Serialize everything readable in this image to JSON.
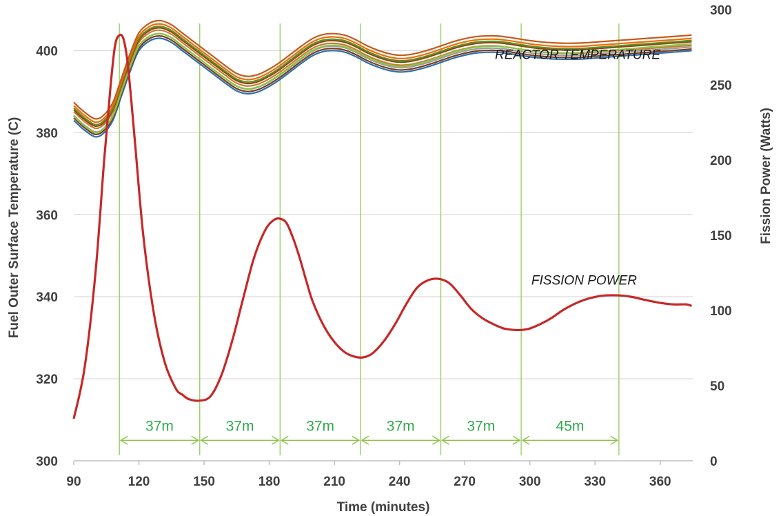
{
  "chart_data": {
    "type": "line",
    "xlabel": "Time (minutes)",
    "ylabel_left": "Fuel Outer Surface Temperature (C)",
    "ylabel_right": "Fission Power (Watts)",
    "xlim": [
      90,
      375
    ],
    "ylim_left": [
      300,
      410
    ],
    "ylim_right": [
      0,
      300
    ],
    "x_ticks": [
      90,
      120,
      150,
      180,
      210,
      240,
      270,
      300,
      330,
      360
    ],
    "y_ticks_left": [
      300,
      320,
      340,
      360,
      380,
      400
    ],
    "y_ticks_right": [
      0,
      50,
      100,
      150,
      200,
      250,
      300
    ],
    "grid": "horizontal",
    "annotations": [
      {
        "text": "REACTOR TEMPERATURE",
        "x": 322,
        "y": 398
      },
      {
        "text": "FISSION POWER",
        "x": 325,
        "y": 343
      }
    ],
    "intervals": [
      {
        "from": 111,
        "to": 148,
        "label": "37m"
      },
      {
        "from": 148,
        "to": 185,
        "label": "37m"
      },
      {
        "from": 185,
        "to": 222,
        "label": "37m"
      },
      {
        "from": 222,
        "to": 259,
        "label": "37m"
      },
      {
        "from": 259,
        "to": 296,
        "label": "37m"
      },
      {
        "from": 296,
        "to": 341,
        "label": "45m"
      }
    ],
    "interval_value_left": 305,
    "fission_power": {
      "axis": "right",
      "color": "#c62828",
      "x": [
        90,
        95,
        100,
        104,
        107,
        109,
        111,
        113,
        115,
        118,
        122,
        127,
        132,
        137,
        140,
        143,
        148,
        153,
        158,
        163,
        168,
        173,
        178,
        182,
        185,
        188,
        191,
        194,
        197,
        200,
        205,
        210,
        215,
        220,
        224,
        228,
        233,
        238,
        243,
        248,
        253,
        258,
        263,
        268,
        273,
        278,
        283,
        288,
        293,
        296,
        300,
        305,
        310,
        315,
        320,
        325,
        330,
        335,
        341,
        347,
        353,
        360,
        366,
        372,
        374.5
      ],
      "values": [
        28,
        62,
        125,
        200,
        250,
        276,
        283,
        280,
        262,
        215,
        150,
        97,
        65,
        48,
        44,
        41,
        40,
        43,
        57,
        80,
        108,
        135,
        153,
        160,
        161,
        158,
        148,
        135,
        120,
        106,
        90,
        79,
        72,
        69,
        69,
        72,
        80,
        91,
        104,
        115,
        120,
        121,
        118,
        110,
        101,
        95,
        91,
        88,
        87,
        87,
        88,
        91,
        95,
        100,
        104,
        107,
        109,
        110,
        110,
        109,
        107,
        105,
        104,
        104,
        103
      ]
    },
    "temperature_x": [
      90,
      95,
      100,
      104,
      108,
      112,
      116,
      120,
      125,
      130,
      135,
      140,
      145,
      150,
      155,
      160,
      165,
      170,
      175,
      180,
      185,
      190,
      195,
      200,
      205,
      210,
      215,
      220,
      225,
      230,
      235,
      240,
      245,
      250,
      255,
      260,
      265,
      270,
      275,
      280,
      285,
      290,
      295,
      300,
      305,
      310,
      315,
      320,
      325,
      330,
      335,
      340,
      345,
      350,
      355,
      360,
      365,
      370,
      374.5
    ],
    "temperature_base": [
      383,
      380.6,
      379,
      380,
      383,
      389,
      395,
      400,
      402.4,
      403,
      402,
      400,
      398,
      396,
      394,
      392,
      390.2,
      389.5,
      390,
      391.3,
      393,
      395,
      397,
      398.8,
      399.8,
      400,
      399.6,
      398.5,
      397.1,
      396,
      395.2,
      394.8,
      395,
      395.6,
      396.4,
      397.3,
      398.2,
      398.9,
      399.4,
      399.6,
      399.6,
      399.3,
      398.9,
      398.5,
      398.2,
      398,
      397.9,
      397.9,
      398,
      398.2,
      398.4,
      398.6,
      398.8,
      399,
      399.2,
      399.4,
      399.6,
      399.8,
      400
    ],
    "series": [
      {
        "axis": "left",
        "color": "#2e6fb0",
        "offset_start": 0.0,
        "offset_end": 0.0
      },
      {
        "axis": "left",
        "color": "#7b3f1e",
        "offset_start": 0.6,
        "offset_end": 0.4
      },
      {
        "axis": "left",
        "color": "#9e9e9e",
        "offset_start": 1.2,
        "offset_end": 0.9
      },
      {
        "axis": "left",
        "color": "#d07a30",
        "offset_start": 2.1,
        "offset_end": 1.3
      },
      {
        "axis": "left",
        "color": "#8bc34a",
        "offset_start": 1.0,
        "offset_end": 1.7
      },
      {
        "axis": "left",
        "color": "#8a4b12",
        "offset_start": 2.6,
        "offset_end": 2.2
      },
      {
        "axis": "left",
        "color": "#5f8f2a",
        "offset_start": 3.0,
        "offset_end": 2.5
      },
      {
        "axis": "left",
        "color": "#ef6c00",
        "offset_start": 3.6,
        "offset_end": 3.0
      },
      {
        "axis": "left",
        "color": "#c45a1c",
        "offset_start": 4.4,
        "offset_end": 3.8
      }
    ]
  }
}
